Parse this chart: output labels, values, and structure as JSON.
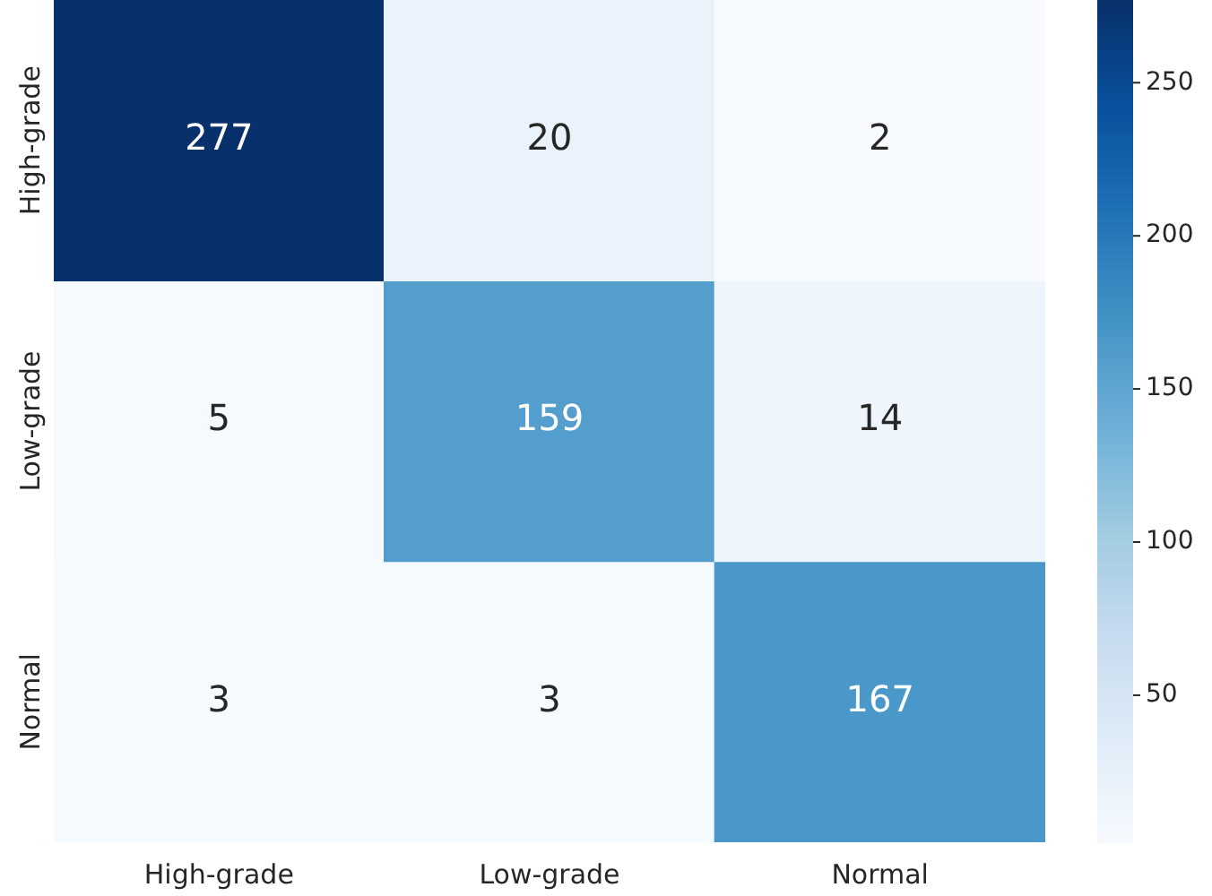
{
  "chart_data": {
    "type": "heatmap",
    "categories": [
      "High-grade",
      "Low-grade",
      "Normal"
    ],
    "y_categories": [
      "High-grade",
      "Low-grade",
      "Normal"
    ],
    "cells": [
      [
        277,
        20,
        2
      ],
      [
        5,
        159,
        14
      ],
      [
        3,
        3,
        167
      ]
    ],
    "clim": [
      2,
      277
    ],
    "cticks": [
      50,
      100,
      150,
      200,
      250
    ],
    "data_labels": true
  }
}
